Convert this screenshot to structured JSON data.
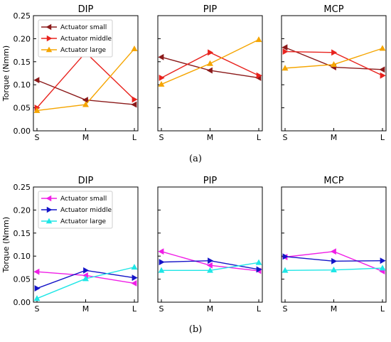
{
  "chart_data": [
    {
      "type": "line",
      "panel_group": "a",
      "caption": "(a)",
      "subtitle": "DIP",
      "ylabel": "Torque (Nmm)",
      "categories": [
        "S",
        "M",
        "L"
      ],
      "ylim": [
        0,
        0.25
      ],
      "yticks": [
        "0.00",
        "0.05",
        "0.10",
        "0.15",
        "0.20",
        "0.25"
      ],
      "legend": "top-left",
      "series": [
        {
          "name": "Actuator small",
          "color": "#8b1a1a",
          "marker": "triangle-left",
          "values": [
            0.11,
            0.067,
            0.057
          ]
        },
        {
          "name": "Actuator middle",
          "color": "#e8231e",
          "marker": "triangle-right",
          "values": [
            0.05,
            0.17,
            0.068
          ]
        },
        {
          "name": "Actuator large",
          "color": "#f5a500",
          "marker": "triangle-up",
          "values": [
            0.044,
            0.057,
            0.178
          ]
        }
      ]
    },
    {
      "type": "line",
      "panel_group": "a",
      "subtitle": "PIP",
      "categories": [
        "S",
        "M",
        "L"
      ],
      "ylim": [
        0,
        0.25
      ],
      "series": [
        {
          "color": "#8b1a1a",
          "marker": "triangle-left",
          "values": [
            0.16,
            0.131,
            0.115
          ]
        },
        {
          "color": "#e8231e",
          "marker": "triangle-right",
          "values": [
            0.115,
            0.17,
            0.12
          ]
        },
        {
          "color": "#f5a500",
          "marker": "triangle-up",
          "values": [
            0.101,
            0.146,
            0.198
          ]
        }
      ]
    },
    {
      "type": "line",
      "panel_group": "a",
      "subtitle": "MCP",
      "categories": [
        "S",
        "M",
        "L"
      ],
      "ylim": [
        0,
        0.25
      ],
      "series": [
        {
          "color": "#8b1a1a",
          "marker": "triangle-left",
          "values": [
            0.181,
            0.138,
            0.133
          ]
        },
        {
          "color": "#e8231e",
          "marker": "triangle-right",
          "values": [
            0.172,
            0.17,
            0.12
          ]
        },
        {
          "color": "#f5a500",
          "marker": "triangle-up",
          "values": [
            0.136,
            0.144,
            0.179
          ]
        }
      ]
    },
    {
      "type": "line",
      "panel_group": "b",
      "caption": "(b)",
      "subtitle": "DIP",
      "ylabel": "Torque (Nmm)",
      "categories": [
        "S",
        "M",
        "L"
      ],
      "ylim": [
        0,
        0.25
      ],
      "yticks": [
        "0.00",
        "0.05",
        "0.10",
        "0.15",
        "0.20",
        "0.25"
      ],
      "legend": "top-left",
      "series": [
        {
          "name": "Actuator small",
          "color": "#f01ee6",
          "marker": "triangle-left",
          "values": [
            0.066,
            0.058,
            0.041
          ]
        },
        {
          "name": "Actuator middle",
          "color": "#1414c8",
          "marker": "triangle-right",
          "values": [
            0.03,
            0.069,
            0.053
          ]
        },
        {
          "name": "Actuator large",
          "color": "#1ee6e6",
          "marker": "triangle-up",
          "values": [
            0.008,
            0.051,
            0.076
          ]
        }
      ]
    },
    {
      "type": "line",
      "panel_group": "b",
      "subtitle": "PIP",
      "categories": [
        "S",
        "M",
        "L"
      ],
      "ylim": [
        0,
        0.25
      ],
      "series": [
        {
          "color": "#f01ee6",
          "marker": "triangle-left",
          "values": [
            0.11,
            0.08,
            0.068
          ]
        },
        {
          "color": "#1414c8",
          "marker": "triangle-right",
          "values": [
            0.087,
            0.09,
            0.071
          ]
        },
        {
          "color": "#1ee6e6",
          "marker": "triangle-up",
          "values": [
            0.069,
            0.069,
            0.086
          ]
        }
      ]
    },
    {
      "type": "line",
      "panel_group": "b",
      "subtitle": "MCP",
      "categories": [
        "S",
        "M",
        "L"
      ],
      "ylim": [
        0,
        0.25
      ],
      "series": [
        {
          "color": "#f01ee6",
          "marker": "triangle-left",
          "values": [
            0.098,
            0.11,
            0.067
          ]
        },
        {
          "color": "#1414c8",
          "marker": "triangle-right",
          "values": [
            0.099,
            0.089,
            0.09
          ]
        },
        {
          "color": "#1ee6e6",
          "marker": "triangle-up",
          "values": [
            0.069,
            0.07,
            0.074
          ]
        }
      ]
    }
  ]
}
